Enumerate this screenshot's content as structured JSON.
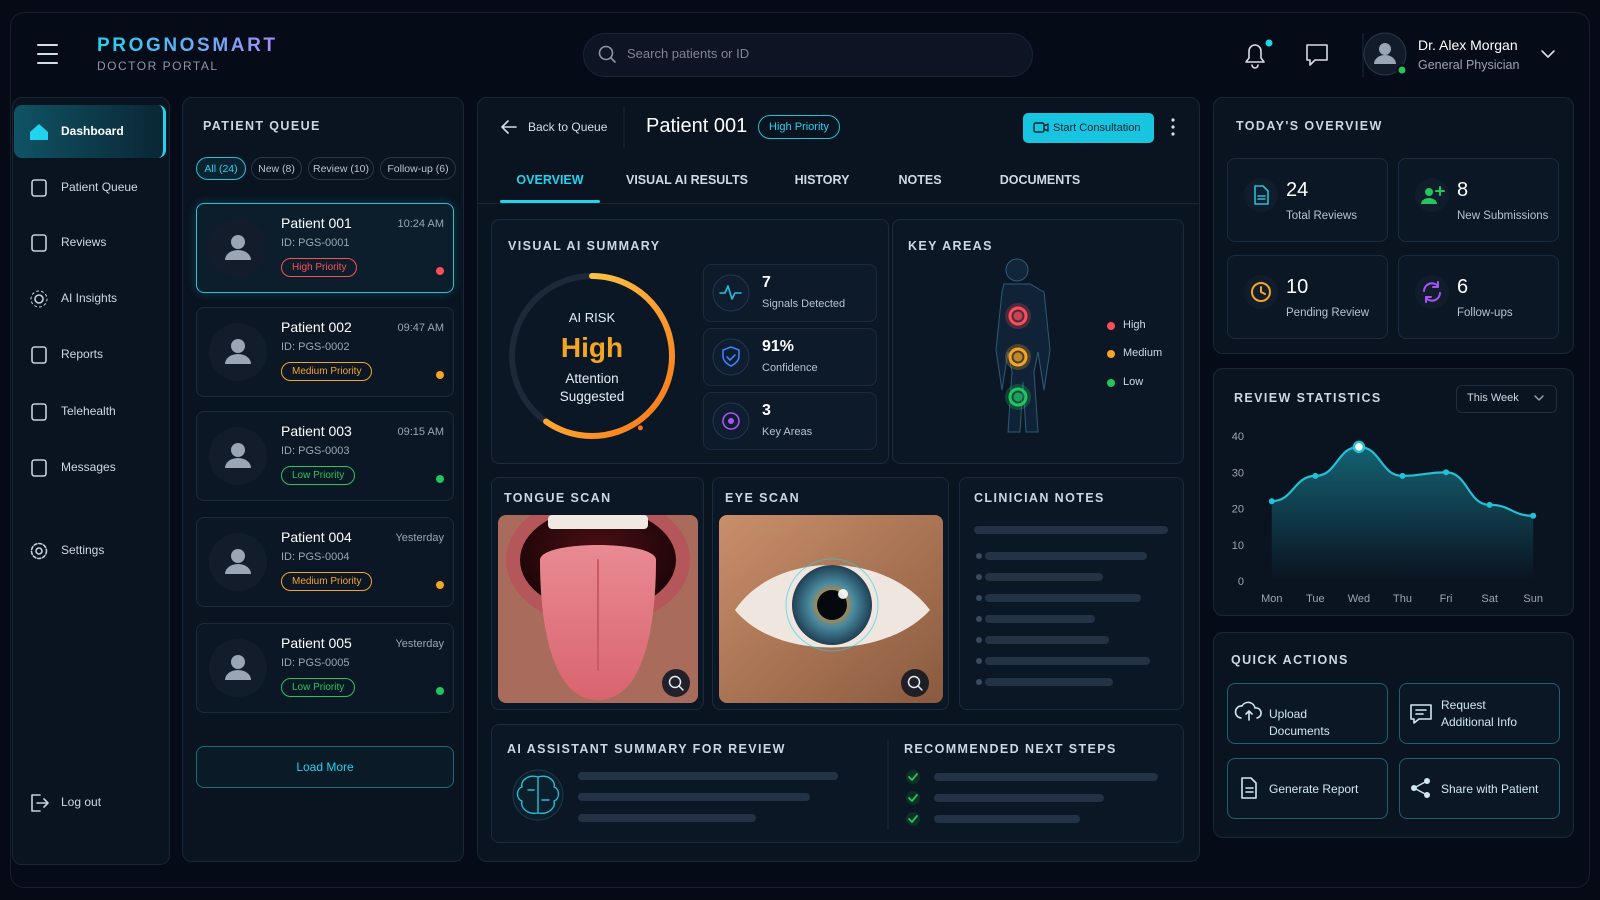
{
  "brand": {
    "name": "PROGNOSMART",
    "subtitle": "DOCTOR PORTAL"
  },
  "search_placeholder": "Search patients or ID",
  "user": {
    "name": "Dr. Alex Morgan",
    "role": "General Physician"
  },
  "nav": [
    "Dashboard",
    "Patient Queue",
    "Reviews",
    "AI Insights",
    "Reports",
    "Telehealth",
    "Messages",
    "Settings",
    "Log out"
  ],
  "queue": {
    "title": "PATIENT QUEUE",
    "filters": [
      "All (24)",
      "New (8)",
      "Review (10)",
      "Follow-up (6)"
    ],
    "patients": [
      {
        "name": "Patient 001",
        "time": "10:24 AM",
        "id": "ID: PGS-0001",
        "priority": "High Priority",
        "color": "#ff4d5a"
      },
      {
        "name": "Patient 002",
        "time": "09:47 AM",
        "id": "ID: PGS-0002",
        "priority": "Medium Priority",
        "color": "#f5a524"
      },
      {
        "name": "Patient 003",
        "time": "09:15 AM",
        "id": "ID: PGS-0003",
        "priority": "Low Priority",
        "color": "#22c55e"
      },
      {
        "name": "Patient 004",
        "time": "Yesterday",
        "id": "ID: PGS-0004",
        "priority": "Medium Priority",
        "color": "#f5a524"
      },
      {
        "name": "Patient 005",
        "time": "Yesterday",
        "id": "ID: PGS-0005",
        "priority": "Low Priority",
        "color": "#22c55e"
      }
    ],
    "load_more": "Load More"
  },
  "patient": {
    "back": "Back to Queue",
    "name": "Patient 001",
    "priority": "High Priority",
    "start": "Start Consultation",
    "tabs": [
      "OVERVIEW",
      "VISUAL AI RESULTS",
      "HISTORY",
      "NOTES",
      "DOCUMENTS"
    ]
  },
  "visual_ai": {
    "title": "VISUAL AI SUMMARY",
    "risk_label": "AI RISK",
    "risk": "High",
    "risk_note": "Attention Suggested",
    "stats": [
      {
        "value": 7,
        "label": "Signals Detected"
      },
      {
        "value": "91%",
        "label": "Confidence"
      },
      {
        "value": 3,
        "label": "Key Areas"
      }
    ]
  },
  "key_areas": {
    "title": "KEY AREAS",
    "legend": [
      "High",
      "Medium",
      "Low"
    ]
  },
  "tongue_scan": "TONGUE SCAN",
  "eye_scan": "EYE SCAN",
  "clinician_notes": "CLINICIAN NOTES",
  "assistant_title": "AI ASSISTANT SUMMARY FOR REVIEW",
  "next_steps_title": "RECOMMENDED NEXT STEPS",
  "overview": {
    "title": "TODAY'S OVERVIEW",
    "cards": [
      {
        "value": 24,
        "label": "Total Reviews",
        "color": "#22c1d6"
      },
      {
        "value": 8,
        "label": "New Submissions",
        "color": "#22c55e"
      },
      {
        "value": 10,
        "label": "Pending Review",
        "color": "#f5a524"
      },
      {
        "value": 6,
        "label": "Follow-ups",
        "color": "#a855f7"
      }
    ]
  },
  "chart_data": {
    "type": "line",
    "title": "REVIEW STATISTICS",
    "period": "This Week",
    "categories": [
      "Mon",
      "Tue",
      "Wed",
      "Thu",
      "Fri",
      "Sat",
      "Sun"
    ],
    "values": [
      22,
      29,
      37,
      29,
      30,
      21,
      18
    ],
    "ylim": [
      0,
      40
    ],
    "yticks": [
      0,
      10,
      20,
      30,
      40
    ],
    "color": "#22c1d6"
  },
  "quick_actions": {
    "title": "QUICK ACTIONS",
    "actions": [
      "Upload Documents",
      "Request Additional Info",
      "Generate Report",
      "Share with Patient"
    ]
  }
}
